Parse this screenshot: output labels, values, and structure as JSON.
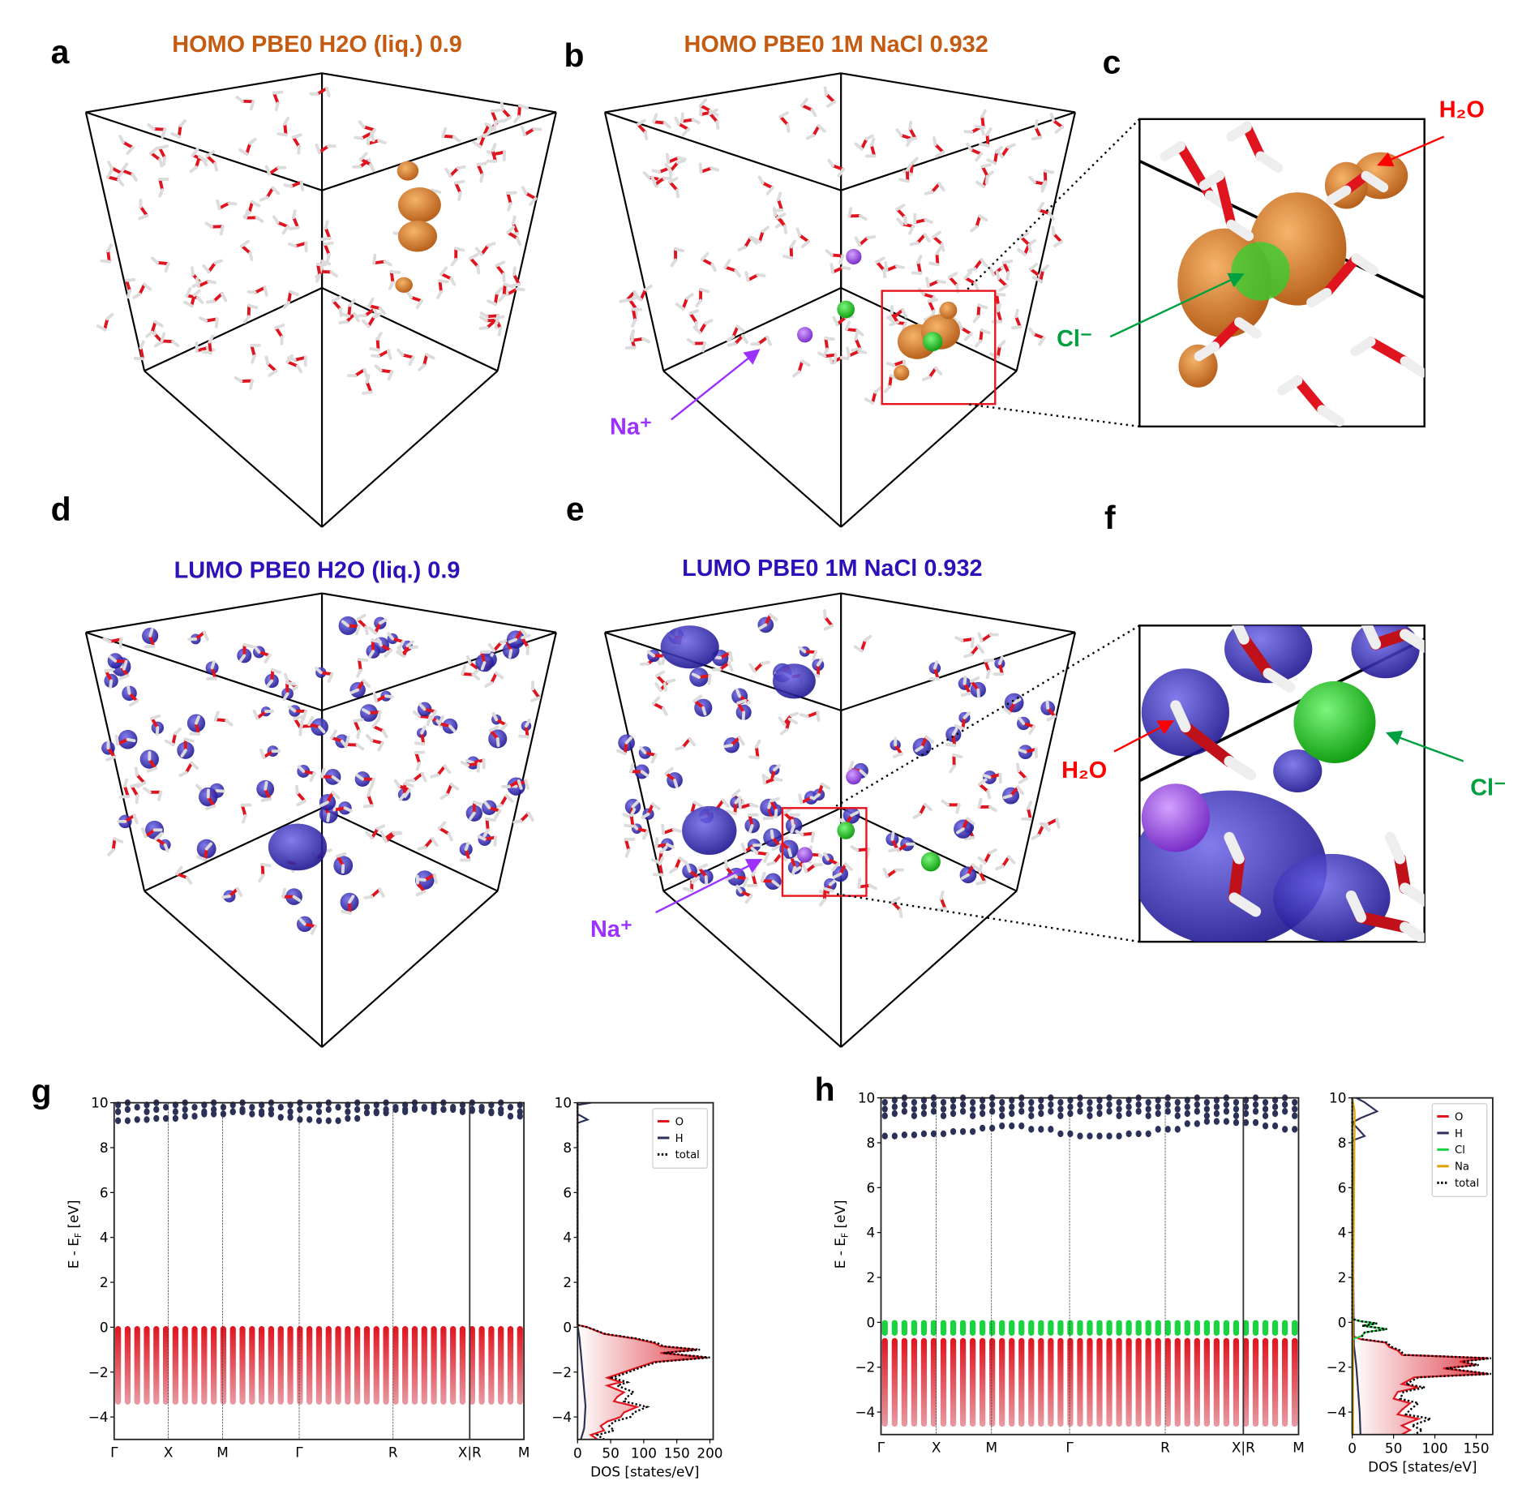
{
  "panels": {
    "a": {
      "letter": "a",
      "title": "HOMO PBE0 H2O (liq.) 0.9"
    },
    "b": {
      "letter": "b",
      "title": "HOMO PBE0 1M NaCl 0.932",
      "na_label": "Na⁺"
    },
    "c": {
      "letter": "c",
      "h2o_label": "H₂O",
      "cl_label": "Cl⁻"
    },
    "d": {
      "letter": "d",
      "title": "LUMO PBE0 H2O (liq.) 0.9"
    },
    "e": {
      "letter": "e",
      "title": "LUMO PBE0 1M NaCl 0.932",
      "na_label": "Na⁺"
    },
    "f": {
      "letter": "f",
      "h2o_label": "H₂O",
      "cl_label": "Cl⁻"
    },
    "g": {
      "letter": "g"
    },
    "h": {
      "letter": "h"
    }
  },
  "colors": {
    "homo_title": "#c55a11",
    "lumo_title": "#2a12b8",
    "homo_orbital": "#e08a35",
    "lumo_orbital": "#3a2fc0",
    "oxygen": "#e0141e",
    "hydrogen": "#f2f2f2",
    "sodium": "#9b4de0",
    "chlorine": "#22c322",
    "na_annotation": "#9b30ff",
    "cl_annotation": "#00a040",
    "h2o_annotation": "#ff0000",
    "band_H": "#2b3157",
    "band_O": "#e0141e",
    "band_Cl": "#19d440",
    "dos_Na": "#e0a000"
  },
  "chart_data": [
    {
      "id": "g",
      "type": "scatter",
      "title": "",
      "band_structure": {
        "ylabel_main": "E - E",
        "ylabel_sub": "F",
        "ylabel_unit": "[eV]",
        "ylim": [
          -5,
          10
        ],
        "yticks": [
          "−4",
          "−2",
          "0",
          "2",
          "4",
          "6",
          "8",
          "10"
        ],
        "ytick_values": [
          -4,
          -2,
          0,
          2,
          4,
          6,
          8,
          10
        ],
        "kpath": [
          "Γ",
          "X",
          "M",
          "Γ",
          "R",
          "X|R",
          "M"
        ],
        "kpath_positions": [
          0,
          0.5,
          1.0,
          1.707,
          2.573,
          3.28,
          3.78
        ],
        "valence_O": {
          "top": 0.05,
          "bottom": -3.45
        },
        "conduction_H": {
          "lower_band": [
            9.2,
            9.25,
            9.3,
            9.4,
            9.5,
            9.6,
            9.5,
            9.35,
            9.25,
            9.2,
            9.3,
            9.55,
            9.7,
            9.75,
            9.7,
            9.65,
            9.55,
            9.4
          ],
          "upper_band_min": 9.6
        }
      },
      "dos": {
        "xlabel": "DOS [states/eV]",
        "xlim": [
          0,
          205
        ],
        "xticks": [
          "0",
          "50",
          "100",
          "150",
          "200"
        ],
        "xtick_values": [
          0,
          50,
          100,
          150,
          200
        ],
        "legend": [
          "O",
          "H",
          "total"
        ],
        "legend_position": "top-right",
        "series": [
          {
            "name": "O",
            "points": [
              [
                0.1,
                0
              ],
              [
                0,
                15
              ],
              [
                -0.3,
                40
              ],
              [
                -0.5,
                85
              ],
              [
                -0.7,
                115
              ],
              [
                -0.85,
                125
              ],
              [
                -1.0,
                180
              ],
              [
                -1.15,
                125
              ],
              [
                -1.35,
                195
              ],
              [
                -1.55,
                115
              ],
              [
                -1.8,
                90
              ],
              [
                -2.1,
                60
              ],
              [
                -2.25,
                45
              ],
              [
                -2.45,
                65
              ],
              [
                -2.6,
                45
              ],
              [
                -2.9,
                70
              ],
              [
                -3.1,
                60
              ],
              [
                -3.3,
                55
              ],
              [
                -3.55,
                90
              ],
              [
                -3.8,
                70
              ],
              [
                -4.0,
                65
              ],
              [
                -4.2,
                45
              ],
              [
                -4.4,
                35
              ],
              [
                -4.6,
                40
              ],
              [
                -4.8,
                20
              ],
              [
                -5.0,
                30
              ]
            ]
          },
          {
            "name": "H",
            "points": [
              [
                10,
                20
              ],
              [
                9.9,
                0
              ],
              [
                9.5,
                0
              ],
              [
                9.25,
                15
              ],
              [
                9.1,
                0
              ],
              [
                0.1,
                0
              ],
              [
                -0.5,
                3
              ],
              [
                -1.5,
                6
              ],
              [
                -2.5,
                9
              ],
              [
                -3.5,
                12
              ],
              [
                -4.5,
                10
              ],
              [
                -5,
                5
              ]
            ]
          },
          {
            "name": "total",
            "points": [
              [
                0.1,
                0
              ],
              [
                0,
                15
              ],
              [
                -0.3,
                42
              ],
              [
                -0.5,
                88
              ],
              [
                -0.7,
                120
              ],
              [
                -0.85,
                130
              ],
              [
                -1.0,
                185
              ],
              [
                -1.15,
                130
              ],
              [
                -1.35,
                200
              ],
              [
                -1.55,
                120
              ],
              [
                -1.8,
                95
              ],
              [
                -2.1,
                68
              ],
              [
                -2.25,
                52
              ],
              [
                -2.45,
                75
              ],
              [
                -2.6,
                60
              ],
              [
                -2.9,
                85
              ],
              [
                -3.1,
                75
              ],
              [
                -3.3,
                70
              ],
              [
                -3.55,
                105
              ],
              [
                -3.8,
                85
              ],
              [
                -4.0,
                80
              ],
              [
                -4.2,
                55
              ],
              [
                -4.4,
                48
              ],
              [
                -4.6,
                55
              ],
              [
                -4.8,
                30
              ],
              [
                -5.0,
                40
              ]
            ]
          }
        ]
      }
    },
    {
      "id": "h",
      "type": "scatter",
      "title": "",
      "band_structure": {
        "ylabel_main": "E - E",
        "ylabel_sub": "F",
        "ylabel_unit": "[eV]",
        "ylim": [
          -5,
          10
        ],
        "yticks": [
          "−4",
          "−2",
          "0",
          "2",
          "4",
          "6",
          "8",
          "10"
        ],
        "ytick_values": [
          -4,
          -2,
          0,
          2,
          4,
          6,
          8,
          10
        ],
        "kpath": [
          "Γ",
          "X",
          "M",
          "Γ",
          "R",
          "X|R",
          "M"
        ],
        "kpath_positions": [
          0,
          0.5,
          1.0,
          1.707,
          2.573,
          3.28,
          3.78
        ],
        "valence_Cl": {
          "top": 0.1,
          "bottom": -0.6
        },
        "valence_O": {
          "top": -0.7,
          "bottom": -4.65
        },
        "conduction_H": {
          "lower_band": [
            8.3,
            8.35,
            8.4,
            8.5,
            8.65,
            8.75,
            8.6,
            8.4,
            8.3,
            8.3,
            8.4,
            8.6,
            8.85,
            8.95,
            8.9,
            8.75,
            8.6
          ],
          "upper_band_min": 9.2
        }
      },
      "dos": {
        "xlabel": "DOS [states/eV]",
        "xlim": [
          0,
          170
        ],
        "xticks": [
          "0",
          "50",
          "100",
          "150"
        ],
        "xtick_values": [
          0,
          50,
          100,
          150
        ],
        "legend": [
          "O",
          "H",
          "Cl",
          "Na",
          "total"
        ],
        "legend_position": "top-right",
        "series": [
          {
            "name": "O",
            "points": [
              [
                -0.6,
                0
              ],
              [
                -0.75,
                10
              ],
              [
                -0.9,
                40
              ],
              [
                -1.1,
                45
              ],
              [
                -1.25,
                55
              ],
              [
                -1.45,
                60
              ],
              [
                -1.6,
                165
              ],
              [
                -1.75,
                130
              ],
              [
                -1.9,
                150
              ],
              [
                -2.05,
                110
              ],
              [
                -2.3,
                165
              ],
              [
                -2.45,
                75
              ],
              [
                -2.75,
                60
              ],
              [
                -2.9,
                80
              ],
              [
                -3.1,
                55
              ],
              [
                -3.4,
                50
              ],
              [
                -3.6,
                70
              ],
              [
                -3.9,
                60
              ],
              [
                -4.1,
                55
              ],
              [
                -4.3,
                80
              ],
              [
                -4.6,
                60
              ],
              [
                -4.8,
                70
              ],
              [
                -5.0,
                60
              ]
            ]
          },
          {
            "name": "H",
            "points": [
              [
                10,
                5
              ],
              [
                9.8,
                15
              ],
              [
                9.4,
                30
              ],
              [
                9.1,
                10
              ],
              [
                8.9,
                0
              ],
              [
                8.3,
                15
              ],
              [
                8.1,
                0
              ],
              [
                -1,
                2
              ],
              [
                -2,
                5
              ],
              [
                -3,
                7
              ],
              [
                -4,
                9
              ],
              [
                -5,
                10
              ]
            ]
          },
          {
            "name": "Cl",
            "points": [
              [
                0.15,
                0
              ],
              [
                0.05,
                10
              ],
              [
                -0.05,
                30
              ],
              [
                -0.15,
                12
              ],
              [
                -0.3,
                42
              ],
              [
                -0.45,
                15
              ],
              [
                -0.6,
                12
              ],
              [
                -0.75,
                0
              ]
            ]
          },
          {
            "name": "Na",
            "points": [
              [
                10,
                0
              ],
              [
                9.4,
                3
              ],
              [
                0,
                1
              ],
              [
                -5,
                1
              ]
            ]
          },
          {
            "name": "total",
            "points": [
              [
                0.15,
                0
              ],
              [
                0.05,
                10
              ],
              [
                -0.05,
                30
              ],
              [
                -0.15,
                12
              ],
              [
                -0.3,
                42
              ],
              [
                -0.45,
                15
              ],
              [
                -0.6,
                12
              ],
              [
                -0.75,
                12
              ],
              [
                -0.9,
                42
              ],
              [
                -1.1,
                48
              ],
              [
                -1.25,
                58
              ],
              [
                -1.45,
                63
              ],
              [
                -1.6,
                168
              ],
              [
                -1.75,
                133
              ],
              [
                -1.9,
                153
              ],
              [
                -2.05,
                113
              ],
              [
                -2.3,
                168
              ],
              [
                -2.45,
                80
              ],
              [
                -2.75,
                65
              ],
              [
                -2.9,
                88
              ],
              [
                -3.1,
                62
              ],
              [
                -3.4,
                58
              ],
              [
                -3.6,
                80
              ],
              [
                -3.9,
                70
              ],
              [
                -4.1,
                65
              ],
              [
                -4.3,
                95
              ],
              [
                -4.6,
                72
              ],
              [
                -4.8,
                85
              ],
              [
                -5.0,
                75
              ]
            ]
          }
        ]
      }
    }
  ]
}
